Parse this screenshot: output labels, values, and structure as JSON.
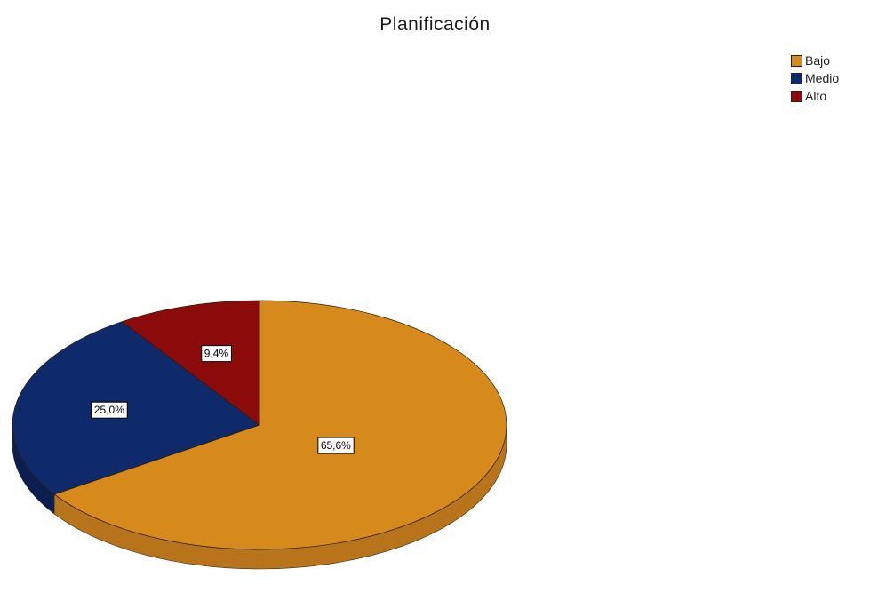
{
  "chart_data": {
    "type": "pie",
    "title": "Planificación",
    "categories": [
      "Bajo",
      "Medio",
      "Alto"
    ],
    "values": [
      65.6,
      25.0,
      9.4
    ],
    "labels": [
      "65,6%",
      "25,0%",
      "9,4%"
    ],
    "colors": [
      "#d68a1c",
      "#0f2a6b",
      "#8b0b0b"
    ],
    "side_colors": [
      "#b8741a",
      "#0a1e52",
      "#690808"
    ],
    "legend_position": "top-right"
  }
}
